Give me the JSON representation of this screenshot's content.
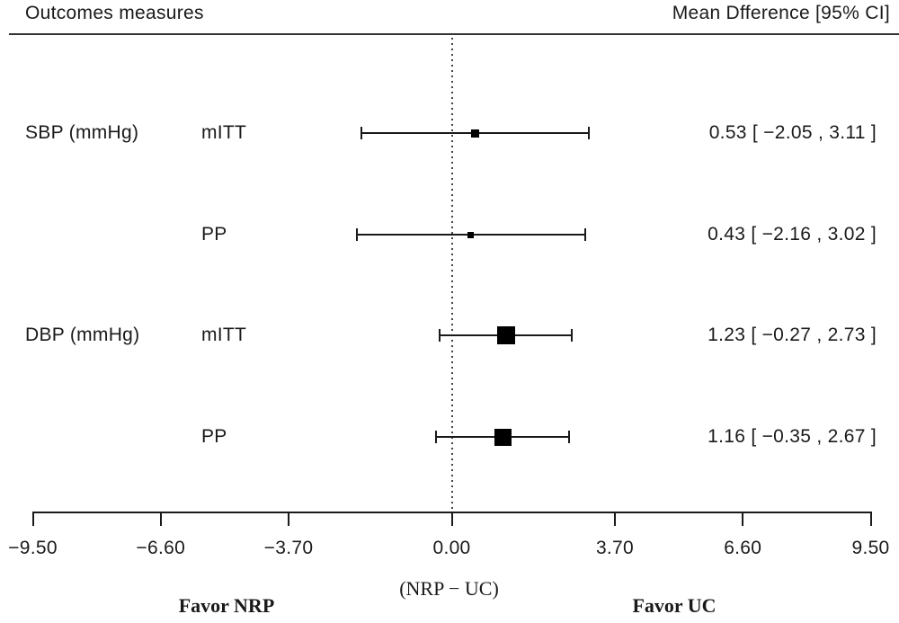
{
  "header": {
    "left_column_title": "Outcomes measures",
    "right_column_title": "Mean Dfference [95% CI]"
  },
  "colors": {
    "foreground": "#1a1a1a",
    "marker": "#000000",
    "background": "#ffffff"
  },
  "chart_data": {
    "type": "forest",
    "title": "",
    "xlabel": "(NRP − UC)",
    "xlim": [
      -9.5,
      9.5
    ],
    "zero_line": 0,
    "grid": false,
    "axis_ticks": [
      {
        "value": -9.5,
        "label": "−9.50"
      },
      {
        "value": -6.6,
        "label": "−6.60"
      },
      {
        "value": -3.7,
        "label": "−3.70"
      },
      {
        "value": 0.0,
        "label": "0.00"
      },
      {
        "value": 3.7,
        "label": "3.70"
      },
      {
        "value": 6.6,
        "label": "6.60"
      },
      {
        "value": 9.5,
        "label": "9.50"
      }
    ],
    "rows": [
      {
        "outcome": "SBP (mmHg)",
        "analysis": "mITT",
        "estimate": 0.53,
        "ci_lower": -2.05,
        "ci_upper": 3.11,
        "estimate_label": "0.53 [ −2.05 , 3.11 ]",
        "marker_size": 9
      },
      {
        "outcome": "",
        "analysis": "PP",
        "estimate": 0.43,
        "ci_lower": -2.16,
        "ci_upper": 3.02,
        "estimate_label": "0.43 [ −2.16 , 3.02 ]",
        "marker_size": 7
      },
      {
        "outcome": "DBP (mmHg)",
        "analysis": "mITT",
        "estimate": 1.23,
        "ci_lower": -0.27,
        "ci_upper": 2.73,
        "estimate_label": "1.23 [ −0.27 , 2.73 ]",
        "marker_size": 20
      },
      {
        "outcome": "",
        "analysis": "PP",
        "estimate": 1.16,
        "ci_lower": -0.35,
        "ci_upper": 2.67,
        "estimate_label": "1.16 [ −0.35 , 2.67 ]",
        "marker_size": 19
      }
    ],
    "footer": {
      "left": "Favor NRP",
      "right": "Favor UC"
    }
  }
}
